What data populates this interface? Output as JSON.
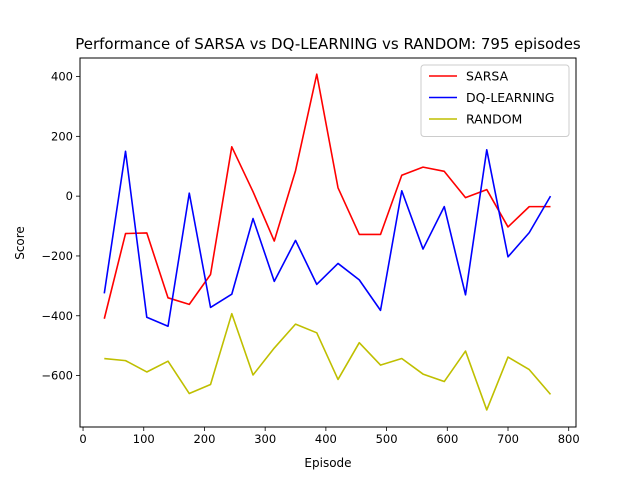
{
  "chart_data": {
    "type": "line",
    "title": "Performance of SARSA vs DQ-LEARNING vs RANDOM: 795 episodes",
    "xlabel": "Episode",
    "ylabel": "Score",
    "xlim": [
      -5,
      812
    ],
    "ylim": [
      -772,
      462
    ],
    "xticks": [
      0,
      100,
      200,
      300,
      400,
      500,
      600,
      700,
      800
    ],
    "yticks": [
      -600,
      -400,
      -200,
      0,
      200,
      400
    ],
    "grid": false,
    "legend_position": "top-right",
    "x": [
      35,
      70,
      105,
      140,
      175,
      210,
      245,
      280,
      315,
      350,
      385,
      420,
      455,
      490,
      525,
      560,
      595,
      630,
      665,
      700,
      735,
      770
    ],
    "series": [
      {
        "name": "SARSA",
        "color": "#ff0000",
        "values": [
          -410,
          -125,
          -123,
          -340,
          -362,
          -262,
          165,
          15,
          -150,
          85,
          408,
          28,
          -128,
          -128,
          70,
          97,
          83,
          -5,
          22,
          -103,
          -35,
          -35
        ]
      },
      {
        "name": "DQ-LEARNING",
        "color": "#0000ff",
        "values": [
          -325,
          150,
          -405,
          -435,
          10,
          -372,
          -328,
          -75,
          -285,
          -148,
          -295,
          -225,
          -280,
          -382,
          18,
          -177,
          -35,
          -330,
          155,
          -203,
          -122,
          0
        ]
      },
      {
        "name": "RANDOM",
        "color": "#bfbf00",
        "values": [
          -543,
          -550,
          -588,
          -552,
          -660,
          -630,
          -393,
          -598,
          -508,
          -428,
          -457,
          -613,
          -490,
          -565,
          -543,
          -595,
          -620,
          -518,
          -715,
          -538,
          -580,
          -663
        ]
      }
    ]
  }
}
